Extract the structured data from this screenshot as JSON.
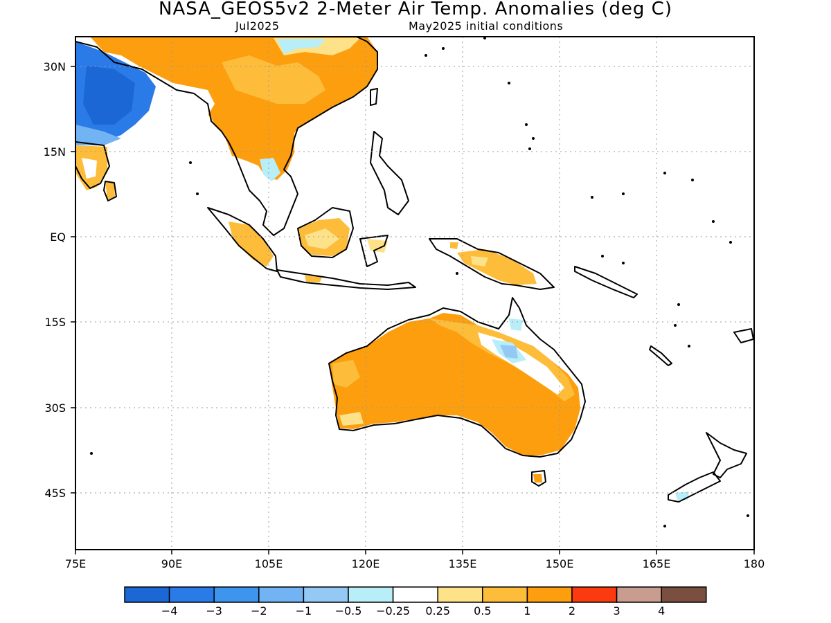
{
  "title": "NASA_GEOS5v2 2-Meter Air Temp. Anomalies (deg C)",
  "subtitle_left": "Jul2025",
  "subtitle_right": "May2025 initial conditions",
  "axes": {
    "lon_labels": [
      "75E",
      "90E",
      "105E",
      "120E",
      "135E",
      "150E",
      "165E",
      "180"
    ],
    "lat_labels": [
      "30N",
      "15N",
      "EQ",
      "15S",
      "30S",
      "45S"
    ]
  },
  "colorbar": {
    "colors": [
      "#1b67d6",
      "#2a7be8",
      "#3d95ee",
      "#72b3f4",
      "#94c9f6",
      "#b8eef8",
      "#ffffff",
      "#fee28a",
      "#fdbd3a",
      "#fc9e0e",
      "#fb3a0f",
      "#c89c8e",
      "#7a4f3f"
    ],
    "tick_labels": [
      "-4",
      "-3",
      "-2",
      "-1",
      "-0.5",
      "-0.25",
      "0.25",
      "0.5",
      "1",
      "2",
      "3",
      "4"
    ]
  },
  "colors": {
    "warm": "#fc9e0e",
    "moderate_warm": "#fdbd3a",
    "slight_warm": "#fee28a",
    "cold": "#2a7be8",
    "very_cold": "#1b67d6",
    "light_cold": "#94c9f6",
    "coastline": "#000000"
  }
}
